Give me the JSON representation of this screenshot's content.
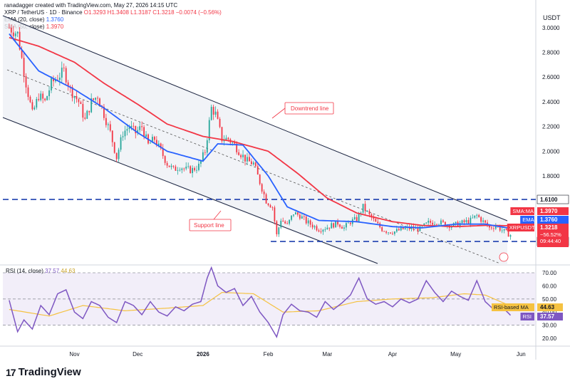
{
  "header": {
    "attribution": "ranadagger created with TradingView.com, May 27, 2026 14:15 UTC",
    "symbol_line": "XRP / TetherUS · 1D · Binance",
    "ohlc": "O1.3293  H1.3408  L1.3187  C1.3218  −0.0074 (−0.56%)",
    "ema_label": "EMA (20, close)",
    "ema_value": "1.3760",
    "sma_label": "SMA (50, close)",
    "sma_value": "1.3970"
  },
  "axis_currency": "USDT",
  "brand": {
    "name": "TradingView",
    "logo": "17"
  },
  "colors": {
    "up": "#26a69a",
    "down": "#f23645",
    "ema": "#2962ff",
    "sma": "#f23645",
    "rsi": "#7e57c2",
    "rsi_ma": "#f5c242",
    "level": "#1e40af",
    "annotation": "#f23645"
  },
  "chart_data": [
    {
      "type": "candlestick",
      "title": "XRP / TetherUS · 1D · Binance",
      "ylabel": "USDT",
      "ylim": [
        1.08,
        3.12
      ],
      "y_ticks": [
        "3.0000",
        "2.8000",
        "2.6000",
        "2.4000",
        "2.2000",
        "2.0000",
        "1.8000"
      ],
      "x_ticks": [
        "Nov",
        "Dec",
        "2026",
        "Feb",
        "Mar",
        "Apr",
        "May",
        "Jun"
      ],
      "series_close_anchors": [
        [
          "2025-10-01",
          3.0
        ],
        [
          "2025-10-05",
          2.95
        ],
        [
          "2025-10-09",
          2.55
        ],
        [
          "2025-10-12",
          2.3
        ],
        [
          "2025-10-15",
          2.45
        ],
        [
          "2025-10-18",
          2.4
        ],
        [
          "2025-10-21",
          2.55
        ],
        [
          "2025-10-24",
          2.6
        ],
        [
          "2025-10-27",
          2.65
        ],
        [
          "2025-10-30",
          2.5
        ],
        [
          "2025-11-03",
          2.4
        ],
        [
          "2025-11-06",
          2.25
        ],
        [
          "2025-11-09",
          2.4
        ],
        [
          "2025-11-12",
          2.45
        ],
        [
          "2025-11-15",
          2.3
        ],
        [
          "2025-11-18",
          2.15
        ],
        [
          "2025-11-21",
          1.95
        ],
        [
          "2025-11-24",
          2.15
        ],
        [
          "2025-11-27",
          2.2
        ],
        [
          "2025-11-30",
          2.15
        ],
        [
          "2025-12-03",
          2.2
        ],
        [
          "2025-12-06",
          2.05
        ],
        [
          "2025-12-09",
          2.1
        ],
        [
          "2025-12-12",
          2.0
        ],
        [
          "2025-12-15",
          1.9
        ],
        [
          "2025-12-18",
          1.85
        ],
        [
          "2025-12-21",
          1.88
        ],
        [
          "2025-12-24",
          1.85
        ],
        [
          "2025-12-27",
          1.85
        ],
        [
          "2025-12-30",
          1.88
        ],
        [
          "2026-01-02",
          2.0
        ],
        [
          "2026-01-05",
          2.35
        ],
        [
          "2026-01-07",
          2.3
        ],
        [
          "2026-01-10",
          2.1
        ],
        [
          "2026-01-13",
          2.1
        ],
        [
          "2026-01-16",
          2.05
        ],
        [
          "2026-01-19",
          1.98
        ],
        [
          "2026-01-22",
          1.92
        ],
        [
          "2026-01-25",
          1.9
        ],
        [
          "2026-01-28",
          1.75
        ],
        [
          "2026-01-31",
          1.6
        ],
        [
          "2026-02-03",
          1.55
        ],
        [
          "2026-02-05",
          1.32
        ],
        [
          "2026-02-07",
          1.45
        ],
        [
          "2026-02-10",
          1.4
        ],
        [
          "2026-02-13",
          1.5
        ],
        [
          "2026-02-16",
          1.48
        ],
        [
          "2026-02-19",
          1.43
        ],
        [
          "2026-02-22",
          1.4
        ],
        [
          "2026-02-25",
          1.37
        ],
        [
          "2026-02-28",
          1.38
        ],
        [
          "2026-03-03",
          1.4
        ],
        [
          "2026-03-06",
          1.42
        ],
        [
          "2026-03-09",
          1.38
        ],
        [
          "2026-03-12",
          1.43
        ],
        [
          "2026-03-15",
          1.45
        ],
        [
          "2026-03-18",
          1.55
        ],
        [
          "2026-03-21",
          1.48
        ],
        [
          "2026-03-24",
          1.42
        ],
        [
          "2026-03-27",
          1.37
        ],
        [
          "2026-03-30",
          1.35
        ],
        [
          "2026-04-02",
          1.35
        ],
        [
          "2026-04-06",
          1.37
        ],
        [
          "2026-04-10",
          1.38
        ],
        [
          "2026-04-14",
          1.37
        ],
        [
          "2026-04-18",
          1.42
        ],
        [
          "2026-04-22",
          1.43
        ],
        [
          "2026-04-26",
          1.41
        ],
        [
          "2026-04-30",
          1.4
        ],
        [
          "2026-05-04",
          1.42
        ],
        [
          "2026-05-08",
          1.44
        ],
        [
          "2026-05-11",
          1.48
        ],
        [
          "2026-05-14",
          1.43
        ],
        [
          "2026-05-17",
          1.38
        ],
        [
          "2026-05-20",
          1.4
        ],
        [
          "2026-05-23",
          1.36
        ],
        [
          "2026-05-27",
          1.3218
        ]
      ],
      "ema20_anchors": [
        [
          "2025-10-01",
          2.95
        ],
        [
          "2025-10-15",
          2.65
        ],
        [
          "2025-11-01",
          2.5
        ],
        [
          "2025-11-15",
          2.35
        ],
        [
          "2025-12-01",
          2.15
        ],
        [
          "2025-12-15",
          2.0
        ],
        [
          "2026-01-01",
          1.92
        ],
        [
          "2026-01-08",
          2.06
        ],
        [
          "2026-01-20",
          2.05
        ],
        [
          "2026-02-01",
          1.8
        ],
        [
          "2026-02-10",
          1.55
        ],
        [
          "2026-02-25",
          1.44
        ],
        [
          "2026-03-15",
          1.43
        ],
        [
          "2026-04-01",
          1.39
        ],
        [
          "2026-04-15",
          1.38
        ],
        [
          "2026-05-01",
          1.41
        ],
        [
          "2026-05-15",
          1.41
        ],
        [
          "2026-05-27",
          1.376
        ]
      ],
      "sma50_anchors": [
        [
          "2025-10-01",
          2.92
        ],
        [
          "2025-10-15",
          2.85
        ],
        [
          "2025-11-01",
          2.72
        ],
        [
          "2025-11-15",
          2.55
        ],
        [
          "2025-12-01",
          2.38
        ],
        [
          "2025-12-15",
          2.22
        ],
        [
          "2026-01-01",
          2.12
        ],
        [
          "2026-01-15",
          2.08
        ],
        [
          "2026-02-01",
          2.0
        ],
        [
          "2026-02-15",
          1.82
        ],
        [
          "2026-03-01",
          1.62
        ],
        [
          "2026-03-15",
          1.5
        ],
        [
          "2026-04-01",
          1.43
        ],
        [
          "2026-04-15",
          1.4
        ],
        [
          "2026-05-01",
          1.39
        ],
        [
          "2026-05-15",
          1.4
        ],
        [
          "2026-05-27",
          1.397
        ]
      ],
      "levels": [
        {
          "value": 1.61,
          "label": "1.6100"
        },
        {
          "value": 1.27,
          "label": "1.2700"
        }
      ],
      "annotations": [
        "Downtrend line",
        "Support line"
      ],
      "price_tags": [
        {
          "label": "SMA:MA",
          "value": "1.3970",
          "color": "#f23645"
        },
        {
          "label": "EMA",
          "value": "1.3760",
          "color": "#2962ff"
        },
        {
          "label": "XRPUSDT",
          "value": "1.3218",
          "extra": [
            "−56.52%",
            "09:44:40"
          ],
          "color": "#f23645"
        }
      ]
    },
    {
      "type": "line",
      "title": "RSI (14, close)",
      "title_values": [
        "37.57",
        "44.63"
      ],
      "ylim": [
        14,
        76
      ],
      "y_ticks": [
        "70.00",
        "60.00",
        "50.00",
        "40.00",
        "30.00",
        "20.00"
      ],
      "bands": [
        70,
        50,
        30
      ],
      "series": [
        {
          "name": "RSI",
          "value_label": "37.57",
          "anchors": [
            [
              "2025-10-01",
              49
            ],
            [
              "2025-10-05",
              25
            ],
            [
              "2025-10-08",
              34
            ],
            [
              "2025-10-12",
              27
            ],
            [
              "2025-10-16",
              45
            ],
            [
              "2025-10-20",
              38
            ],
            [
              "2025-10-24",
              54
            ],
            [
              "2025-10-28",
              57
            ],
            [
              "2025-11-01",
              40
            ],
            [
              "2025-11-05",
              35
            ],
            [
              "2025-11-09",
              48
            ],
            [
              "2025-11-13",
              45
            ],
            [
              "2025-11-17",
              36
            ],
            [
              "2025-11-21",
              32
            ],
            [
              "2025-11-25",
              48
            ],
            [
              "2025-11-29",
              45
            ],
            [
              "2025-12-03",
              38
            ],
            [
              "2025-12-07",
              48
            ],
            [
              "2025-12-11",
              40
            ],
            [
              "2025-12-15",
              37
            ],
            [
              "2025-12-19",
              44
            ],
            [
              "2025-12-23",
              41
            ],
            [
              "2025-12-27",
              46
            ],
            [
              "2025-12-31",
              48
            ],
            [
              "2026-01-03",
              66
            ],
            [
              "2026-01-05",
              74
            ],
            [
              "2026-01-08",
              60
            ],
            [
              "2026-01-12",
              55
            ],
            [
              "2026-01-16",
              58
            ],
            [
              "2026-01-20",
              45
            ],
            [
              "2026-01-24",
              52
            ],
            [
              "2026-01-28",
              40
            ],
            [
              "2026-02-01",
              32
            ],
            [
              "2026-02-05",
              21
            ],
            [
              "2026-02-08",
              38
            ],
            [
              "2026-02-12",
              46
            ],
            [
              "2026-02-16",
              41
            ],
            [
              "2026-02-20",
              40
            ],
            [
              "2026-02-24",
              36
            ],
            [
              "2026-02-28",
              48
            ],
            [
              "2026-03-04",
              42
            ],
            [
              "2026-03-08",
              47
            ],
            [
              "2026-03-12",
              53
            ],
            [
              "2026-03-16",
              66
            ],
            [
              "2026-03-20",
              50
            ],
            [
              "2026-03-24",
              46
            ],
            [
              "2026-03-28",
              48
            ],
            [
              "2026-04-01",
              44
            ],
            [
              "2026-04-05",
              50
            ],
            [
              "2026-04-09",
              47
            ],
            [
              "2026-04-13",
              50
            ],
            [
              "2026-04-17",
              64
            ],
            [
              "2026-04-21",
              55
            ],
            [
              "2026-04-25",
              48
            ],
            [
              "2026-04-29",
              56
            ],
            [
              "2026-05-03",
              52
            ],
            [
              "2026-05-07",
              49
            ],
            [
              "2026-05-11",
              64
            ],
            [
              "2026-05-15",
              48
            ],
            [
              "2026-05-19",
              42
            ],
            [
              "2026-05-23",
              44
            ],
            [
              "2026-05-27",
              37.57
            ]
          ]
        },
        {
          "name": "RSI-based MA",
          "value_label": "44.63",
          "anchors": [
            [
              "2025-10-01",
              42
            ],
            [
              "2025-10-20",
              37
            ],
            [
              "2025-11-05",
              45
            ],
            [
              "2025-11-25",
              41
            ],
            [
              "2025-12-15",
              43
            ],
            [
              "2026-01-01",
              45
            ],
            [
              "2026-01-10",
              55
            ],
            [
              "2026-01-25",
              54
            ],
            [
              "2026-02-08",
              40
            ],
            [
              "2026-02-25",
              41
            ],
            [
              "2026-03-15",
              48
            ],
            [
              "2026-04-01",
              50
            ],
            [
              "2026-04-20",
              51
            ],
            [
              "2026-05-05",
              54
            ],
            [
              "2026-05-15",
              53
            ],
            [
              "2026-05-27",
              44.63
            ]
          ]
        }
      ]
    }
  ]
}
